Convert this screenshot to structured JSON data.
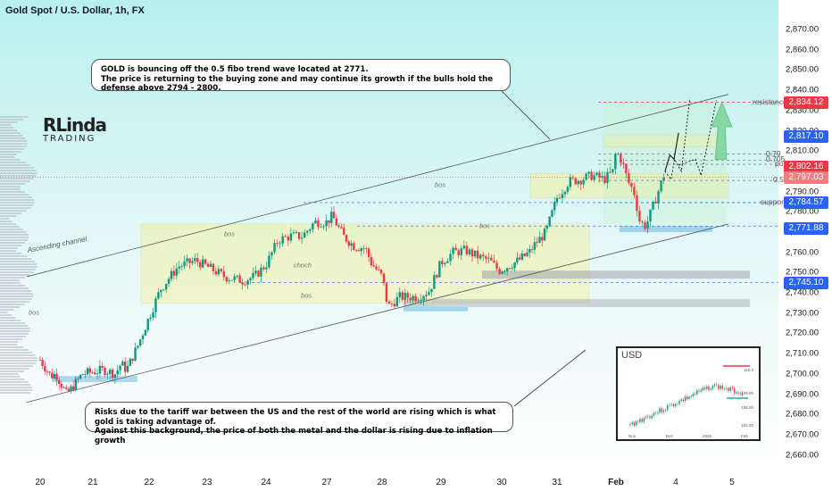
{
  "header": {
    "title": "Gold Spot / U.S. Dollar, 1h, FX"
  },
  "logo": {
    "line1": "RLinda",
    "line2": "TRADING"
  },
  "callouts": {
    "top_line1": "GOLD is bouncing off the 0.5 fibo trend wave located at 2771.",
    "top_line2": "The price is returning to the buying zone and may continue its growth if the bulls hold the defense above 2794 - 2800.",
    "bottom_line1": "Risks due to the tariff war between the US and the rest of the world are rising which is what gold is taking advantage of.",
    "bottom_line2": "Against this background, the price of both the metal and the dollar is rising due to inflation growth"
  },
  "chart_data": {
    "type": "line",
    "x_ticks": [
      "20",
      "21",
      "22",
      "23",
      "24",
      "27",
      "28",
      "29",
      "30",
      "31",
      "Feb",
      "4",
      "5"
    ],
    "y_ticks": [
      "2,660.00",
      "2,670.00",
      "2,680.00",
      "2,690.00",
      "2,700.00",
      "2,710.00",
      "2,720.00",
      "2,730.00",
      "2,740.00",
      "2,750.00",
      "2,760.00",
      "2,770.00",
      "2,780.00",
      "2,790.00",
      "2,800.00",
      "2,810.00",
      "2,820.00",
      "2,830.00",
      "2,840.00",
      "2,850.00",
      "2,860.00",
      "2,870.00"
    ],
    "ylim": [
      2655,
      2874
    ],
    "series": [
      {
        "values": [
          [
            0,
            2707
          ],
          [
            0.1,
            2703
          ],
          [
            0.2,
            2699
          ],
          [
            0.3,
            2700
          ],
          [
            0.5,
            2690
          ],
          [
            0.6,
            2693
          ],
          [
            0.8,
            2700
          ],
          [
            1,
            2701
          ],
          [
            1.2,
            2702
          ],
          [
            1.4,
            2700
          ],
          [
            1.5,
            2705
          ],
          [
            1.6,
            2702
          ],
          [
            1.8,
            2714
          ],
          [
            2,
            2728
          ],
          [
            2.2,
            2742
          ],
          [
            2.5,
            2753
          ],
          [
            2.8,
            2756
          ],
          [
            3.0,
            2753
          ],
          [
            3.3,
            2748
          ],
          [
            3.6,
            2746
          ],
          [
            3.8,
            2748
          ],
          [
            4.0,
            2754
          ],
          [
            4.2,
            2766
          ],
          [
            4.4,
            2768
          ],
          [
            4.6,
            2768
          ],
          [
            4.8,
            2775
          ],
          [
            5.0,
            2775
          ],
          [
            5.1,
            2778
          ],
          [
            5.3,
            2768
          ],
          [
            5.5,
            2763
          ],
          [
            5.7,
            2762
          ],
          [
            5.8,
            2755
          ],
          [
            6.0,
            2748
          ],
          [
            6.1,
            2733
          ],
          [
            6.3,
            2738
          ],
          [
            6.6,
            2738
          ],
          [
            6.8,
            2741
          ],
          [
            7.0,
            2755
          ],
          [
            7.2,
            2760
          ],
          [
            7.4,
            2761
          ],
          [
            7.6,
            2758
          ],
          [
            7.8,
            2756
          ],
          [
            7.95,
            2751
          ],
          [
            8.1,
            2753
          ],
          [
            8.3,
            2756
          ],
          [
            8.5,
            2760
          ],
          [
            8.6,
            2764
          ],
          [
            8.8,
            2770
          ],
          [
            9.0,
            2787
          ],
          [
            9.2,
            2795
          ],
          [
            9.4,
            2796
          ],
          [
            9.6,
            2798
          ],
          [
            9.8,
            2796
          ],
          [
            9.95,
            2800
          ],
          [
            10.0,
            2810
          ],
          [
            10.1,
            2805
          ],
          [
            10.2,
            2795
          ],
          [
            10.3,
            2790
          ],
          [
            10.4,
            2775
          ],
          [
            10.5,
            2773
          ],
          [
            10.6,
            2781
          ],
          [
            10.8,
            2798
          ]
        ]
      }
    ],
    "levels": [
      {
        "label": "resistance",
        "value": 2834.12,
        "color": "#f23645"
      },
      {
        "label": "0.79",
        "value": 2808.5,
        "color": "#787b86"
      },
      {
        "label": "0.705",
        "value": 2805.5,
        "color": "#787b86"
      },
      {
        "label": "poi",
        "value": 2803.5,
        "color": "#787b86"
      },
      {
        "label": "0.5",
        "value": 2795.5,
        "color": "#787b86"
      },
      {
        "label": "support",
        "value": 2784.57,
        "color": "#2962ff"
      }
    ],
    "price_tags": [
      {
        "text": "2,834.12",
        "value": 2834.12,
        "color": "#f23645"
      },
      {
        "text": "2,817.10",
        "value": 2817.1,
        "color": "#2962ff"
      },
      {
        "text": "2,802.16",
        "value": 2802.16,
        "color": "#f23645"
      },
      {
        "text": "2,797.03",
        "value": 2797.03,
        "color": "#f77c80"
      },
      {
        "text": "2,784.57",
        "value": 2784.57,
        "color": "#2962ff"
      },
      {
        "text": "2,771.88",
        "value": 2771.88,
        "color": "#2962ff"
      },
      {
        "text": "2,745.10",
        "value": 2745.1,
        "color": "#2962ff"
      }
    ],
    "annotations": [
      "bos",
      "bos",
      "choch",
      "bos",
      "bos",
      "bos",
      "Ascending channel"
    ]
  },
  "inset": {
    "title": "USD",
    "x_ticks": [
      "Nov",
      "Dec",
      "2025",
      "Feb"
    ],
    "y_ticks": [
      "110.0",
      "108.00",
      "106.00",
      "104.00"
    ]
  }
}
